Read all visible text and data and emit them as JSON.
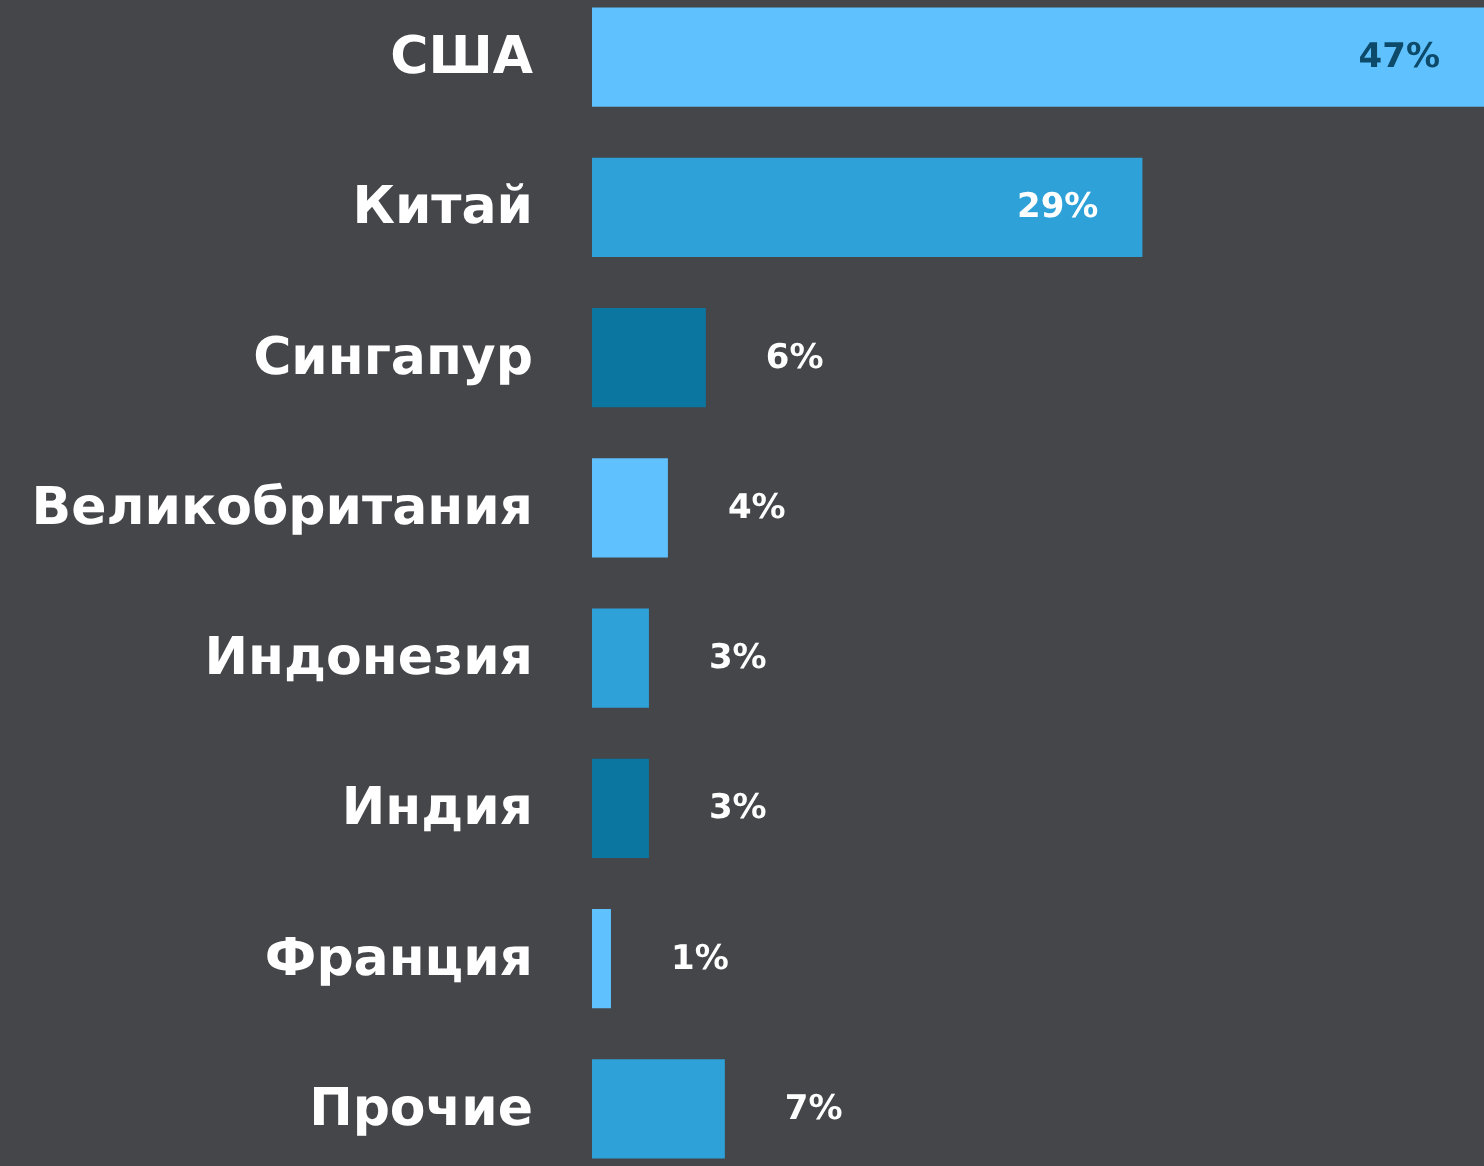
{
  "chart_data": {
    "type": "bar",
    "orientation": "horizontal",
    "categories": [
      "США",
      "Китай",
      "Сингапур",
      "Великобритания",
      "Индонезия",
      "Индия",
      "Франция",
      "Прочие"
    ],
    "values": [
      47,
      29,
      6,
      4,
      3,
      3,
      1,
      7
    ],
    "value_labels": [
      "47%",
      "29%",
      "6%",
      "4%",
      "3%",
      "3%",
      "1%",
      "7%"
    ],
    "colors": [
      "#5fc1fd",
      "#2ea1d8",
      "#0b769f",
      "#5fc1fd",
      "#2ea1d8",
      "#0b769f",
      "#5fc1fd",
      "#2ea1d8"
    ]
  }
}
